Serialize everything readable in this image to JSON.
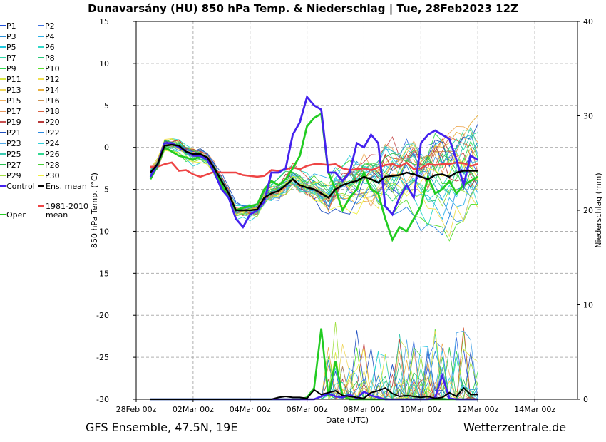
{
  "chart_data": {
    "type": "line",
    "title": "Dunavarsány  (HU)  850 hPa Temp. & Niederschlag | Tue, 28Feb2023 12Z",
    "xlabel": "Date (UTC)",
    "ylabel": "850 hPa Temp. (°C)",
    "ylabel_right": "Niederschlag (mm)",
    "ylim": [
      -30,
      15
    ],
    "ylim_right": [
      0,
      40
    ],
    "xlim_days": [
      0,
      15.5
    ],
    "x_ticks": [
      {
        "day": 0,
        "label": "28Feb 00z"
      },
      {
        "day": 2,
        "label": "02Mar 00z"
      },
      {
        "day": 4,
        "label": "04Mar 00z"
      },
      {
        "day": 6,
        "label": "06Mar 00z"
      },
      {
        "day": 8,
        "label": "08Mar 00z"
      },
      {
        "day": 10,
        "label": "10Mar 00z"
      },
      {
        "day": 12,
        "label": "12Mar 00z"
      },
      {
        "day": 14,
        "label": "14Mar 00z"
      }
    ],
    "y_ticks": [
      15,
      10,
      5,
      0,
      -5,
      -10,
      -15,
      -20,
      -25,
      -30
    ],
    "y_ticks_right": [
      40,
      30,
      20,
      10,
      0
    ],
    "legend": {
      "members": [
        {
          "name": "P1",
          "color": "#1f4fd8"
        },
        {
          "name": "P2",
          "color": "#3a6fe0"
        },
        {
          "name": "P3",
          "color": "#2a8fd8"
        },
        {
          "name": "P4",
          "color": "#2ab0e8"
        },
        {
          "name": "P5",
          "color": "#20c8e0"
        },
        {
          "name": "P6",
          "color": "#30d8c8"
        },
        {
          "name": "P7",
          "color": "#30d8a8"
        },
        {
          "name": "P8",
          "color": "#28c878"
        },
        {
          "name": "P9",
          "color": "#30d850"
        },
        {
          "name": "P10",
          "color": "#58e030"
        },
        {
          "name": "P11",
          "color": "#d8e840"
        },
        {
          "name": "P12",
          "color": "#f0e050"
        },
        {
          "name": "P13",
          "color": "#f0d860"
        },
        {
          "name": "P14",
          "color": "#e8b040"
        },
        {
          "name": "P15",
          "color": "#f0b060"
        },
        {
          "name": "P16",
          "color": "#c89050"
        },
        {
          "name": "P17",
          "color": "#e89860"
        },
        {
          "name": "P18",
          "color": "#d86040"
        },
        {
          "name": "P19",
          "color": "#c85050"
        },
        {
          "name": "P20",
          "color": "#b83838"
        },
        {
          "name": "P21",
          "color": "#2050c0"
        },
        {
          "name": "P22",
          "color": "#2888e0"
        },
        {
          "name": "P23",
          "color": "#50a8e8"
        },
        {
          "name": "P24",
          "color": "#30d0d8"
        },
        {
          "name": "P25",
          "color": "#38c8b0"
        },
        {
          "name": "P26",
          "color": "#30d890"
        },
        {
          "name": "P27",
          "color": "#28c050"
        },
        {
          "name": "P28",
          "color": "#48d038"
        },
        {
          "name": "P29",
          "color": "#a0e040"
        },
        {
          "name": "P30",
          "color": "#f0f040"
        }
      ],
      "control_label": "Control",
      "ens_mean_label": "Ens. mean",
      "clim_label_1": "1981-2010",
      "clim_label_2": "mean",
      "oper_label": "Oper"
    },
    "control_temp": [
      -3.5,
      -2.0,
      0.5,
      0.5,
      0.0,
      -0.5,
      -1.0,
      -1.0,
      -1.5,
      -3.0,
      -5.0,
      -6.0,
      -8.5,
      -9.5,
      -8.0,
      -7.5,
      -6.5,
      -3.0,
      -3.0,
      -2.5,
      1.5,
      3.0,
      6.0,
      5.0,
      4.5,
      -3.0,
      -3.0,
      -4.0,
      -3.0,
      0.5,
      0.0,
      1.5,
      0.5,
      -7.0,
      -8.0,
      -6.0,
      -4.5,
      -6.0,
      0.5,
      1.5,
      2.0,
      1.5,
      1.0,
      -1.5,
      -4.5,
      -1.0,
      -1.5
    ],
    "oper_temp": [
      -3.8,
      -2.2,
      0.0,
      -0.5,
      -1.0,
      -1.2,
      -1.5,
      -1.0,
      -1.5,
      -2.5,
      -4.5,
      -6.0,
      -7.5,
      -7.2,
      -7.0,
      -6.8,
      -5.0,
      -4.0,
      -4.5,
      -3.8,
      -2.5,
      -1.0,
      2.5,
      3.5,
      4.0,
      -3.0,
      -5.0,
      -7.5,
      -6.0,
      -5.0,
      -3.0,
      -5.0,
      -5.5,
      -8.5,
      -11.0,
      -9.5,
      -10.0,
      -8.5,
      -7.0,
      -3.5,
      -5.5,
      -5.0,
      -4.0,
      -5.5,
      -4.5,
      -4.0,
      -3.5
    ],
    "ens_mean_temp": [
      -3.0,
      -2.0,
      0.2,
      0.3,
      0.2,
      -0.5,
      -0.8,
      -0.8,
      -1.2,
      -2.5,
      -4.0,
      -5.5,
      -7.5,
      -7.5,
      -7.5,
      -7.4,
      -6.0,
      -5.5,
      -5.2,
      -4.5,
      -3.8,
      -4.5,
      -4.8,
      -5.0,
      -5.5,
      -6.0,
      -5.0,
      -4.5,
      -4.2,
      -4.0,
      -3.5,
      -3.8,
      -4.2,
      -3.5,
      -3.4,
      -3.3,
      -3.0,
      -3.2,
      -3.5,
      -3.8,
      -3.3,
      -3.2,
      -3.5,
      -3.0,
      -2.8,
      -2.8,
      -2.8
    ],
    "clim_temp": [
      -2.3,
      -2.3,
      -2.0,
      -1.8,
      -2.8,
      -2.7,
      -3.2,
      -3.5,
      -3.2,
      -2.9,
      -3.0,
      -3.0,
      -3.0,
      -3.3,
      -3.4,
      -3.5,
      -3.4,
      -2.7,
      -2.8,
      -2.6,
      -2.4,
      -2.6,
      -2.2,
      -2.0,
      -2.0,
      -2.1,
      -2.0,
      -2.5,
      -2.7,
      -2.6,
      -2.5,
      -2.7,
      -2.4,
      -2.1,
      -2.0,
      -2.3,
      -1.8,
      -2.6,
      -2.5,
      -2.0,
      -2.1,
      -2.0,
      -2.0,
      -1.8,
      -1.9,
      -2.2,
      -2.0
    ],
    "control_precip": [
      0,
      0,
      0,
      0,
      0,
      0,
      0,
      0,
      0,
      0,
      0,
      0,
      0,
      0,
      0,
      0,
      0,
      0,
      0,
      0,
      0,
      0,
      0,
      0,
      0.3,
      0.6,
      0.3,
      0.2,
      0.5,
      0.1,
      0.8,
      0.4,
      0.2,
      0,
      0,
      0,
      0,
      0,
      0,
      0,
      0.2,
      2.5,
      0.1,
      0,
      0,
      0,
      0
    ],
    "oper_precip": [
      0,
      0,
      0,
      0,
      0,
      0,
      0,
      0,
      0,
      0,
      0,
      0,
      0,
      0,
      0,
      0,
      0,
      0,
      0,
      0,
      0,
      0,
      0.2,
      1.2,
      7.5,
      0.3,
      4.0,
      0.4,
      0,
      0,
      0,
      0,
      0,
      0,
      0,
      0,
      0,
      0,
      0,
      0,
      0,
      0,
      0,
      0,
      0,
      0,
      0
    ],
    "ens_mean_precip": [
      0,
      0,
      0,
      0,
      0,
      0,
      0,
      0,
      0,
      0,
      0,
      0,
      0,
      0,
      0,
      0,
      0,
      0,
      0.2,
      0.3,
      0.2,
      0.2,
      0.1,
      1.0,
      0.5,
      0.7,
      0.9,
      0.4,
      0.3,
      0.2,
      0.1,
      0.7,
      0.9,
      1.2,
      0.6,
      0.3,
      0.4,
      0.3,
      0.2,
      0.3,
      0.1,
      0.2,
      0.7,
      0.3,
      1.2,
      0.5,
      0.5
    ]
  },
  "footer": {
    "model_info": "GFS Ensemble, 47.5N, 19E",
    "site": "Wetterzentrale.de"
  }
}
